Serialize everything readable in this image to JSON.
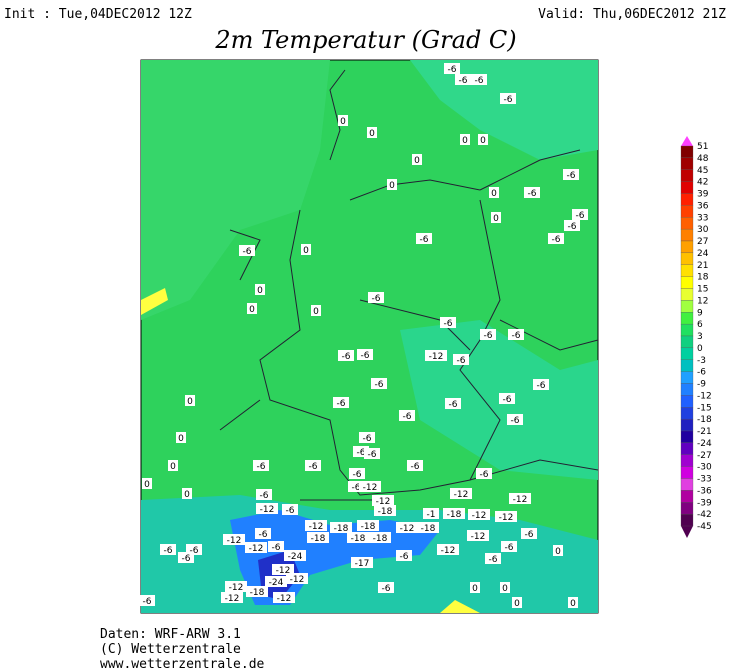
{
  "header": {
    "init": "Init : Tue,04DEC2012 12Z",
    "valid": "Valid: Thu,06DEC2012 21Z",
    "title": "2m Temperatur (Grad C)"
  },
  "colorbar": {
    "levels": [
      51,
      48,
      45,
      42,
      39,
      36,
      33,
      30,
      27,
      24,
      21,
      18,
      15,
      12,
      9,
      6,
      3,
      0,
      -3,
      -6,
      -9,
      -12,
      -15,
      -18,
      -21,
      -24,
      -27,
      -30,
      -33,
      -36,
      -39,
      -42,
      -45
    ],
    "colors": [
      "#ff40ff",
      "#800000",
      "#a00000",
      "#c00000",
      "#e00000",
      "#ff2000",
      "#ff4000",
      "#ff6000",
      "#ff8000",
      "#ffa000",
      "#ffc000",
      "#ffe000",
      "#ffff00",
      "#e8ff30",
      "#a0ff40",
      "#40f040",
      "#20e060",
      "#10d080",
      "#00d0a0",
      "#00c0c0",
      "#20a0ff",
      "#2080ff",
      "#2060ff",
      "#2040e0",
      "#2020c0",
      "#2000a0",
      "#6000c0",
      "#a000d0",
      "#d000e0",
      "#e040e0",
      "#b000a0",
      "#800080",
      "#500050"
    ]
  },
  "map_labels": [
    "-6",
    "-6",
    "-6",
    "-6",
    "0",
    "0",
    "0",
    "0",
    "0",
    "0",
    "0",
    "-6",
    "-6",
    "0",
    "-6",
    "-6",
    "-6",
    "-6",
    "-6",
    "0",
    "0",
    "-6",
    "0",
    "0",
    "-6",
    "-6",
    "-6",
    "-6",
    "-6",
    "-12",
    "-6",
    "-6",
    "-6",
    "0",
    "-6",
    "-6",
    "-6",
    "-6",
    "-6",
    "0",
    "-6",
    "-6",
    "-6",
    "0",
    "-6",
    "-6",
    "-6",
    "-6",
    "-6",
    "0",
    "0",
    "-6",
    "-6",
    "-12",
    "-12",
    "-12",
    "-12",
    "-6",
    "-12",
    "-18",
    "-1",
    "-18",
    "-12",
    "-12",
    "-12",
    "-18",
    "-18",
    "-12",
    "-18",
    "-12",
    "-6",
    "-18",
    "-18",
    "-18",
    "-12",
    "-6",
    "-6",
    "-6",
    "-12",
    "-6",
    "-6",
    "-6",
    "-24",
    "-6",
    "-12",
    "0",
    "-17",
    "-6",
    "-12",
    "-24",
    "-12",
    "-12",
    "-18",
    "-12",
    "-12",
    "-6",
    "0",
    "0",
    "-6",
    "0",
    "0"
  ],
  "footer": [
    "Daten: WRF-ARW 3.1",
    "(C) Wetterzentrale",
    "www.wetterzentrale.de"
  ]
}
